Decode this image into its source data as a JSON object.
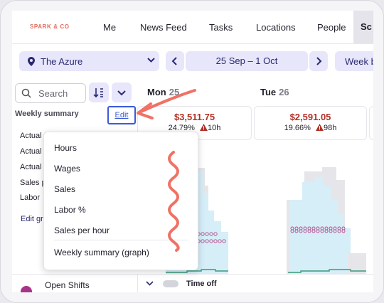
{
  "nav": {
    "logo": "SPARK & CO",
    "items": [
      "Me",
      "News Feed",
      "Tasks",
      "Locations",
      "People",
      "Sc"
    ]
  },
  "controls": {
    "location": "The Azure",
    "date_range": "25 Sep – 1 Oct",
    "view": "Week by",
    "search_placeholder": "Search"
  },
  "days": [
    {
      "name": "Mon",
      "num": "25",
      "amount": "$3,511.75",
      "pct": "24.79%",
      "hours": "10h"
    },
    {
      "name": "Tue",
      "num": "26",
      "amount": "$2,591.05",
      "pct": "19.66%",
      "hours": "98h"
    }
  ],
  "summary": {
    "label": "Weekly summary",
    "edit_label": "Edit",
    "rows": [
      "Actual",
      "Actual",
      "Actual",
      "Sales p",
      "Labor"
    ],
    "edit_graph": "Edit gr"
  },
  "menu": {
    "items": [
      "Hours",
      "Wages",
      "Sales",
      "Labor %",
      "Sales per hour"
    ],
    "footer_item": "Weekly summary (graph)"
  },
  "footer": {
    "open_shifts": "Open Shifts",
    "time_off": "Time off"
  },
  "colors": {
    "accent": "#e7e6fb",
    "brand": "#2a2a72",
    "alert": "#b03127",
    "annotation": "#f07165",
    "chart_fill": "#d6eef8",
    "chart_line": "#3a9a7a",
    "marker": "#b04a8a"
  }
}
